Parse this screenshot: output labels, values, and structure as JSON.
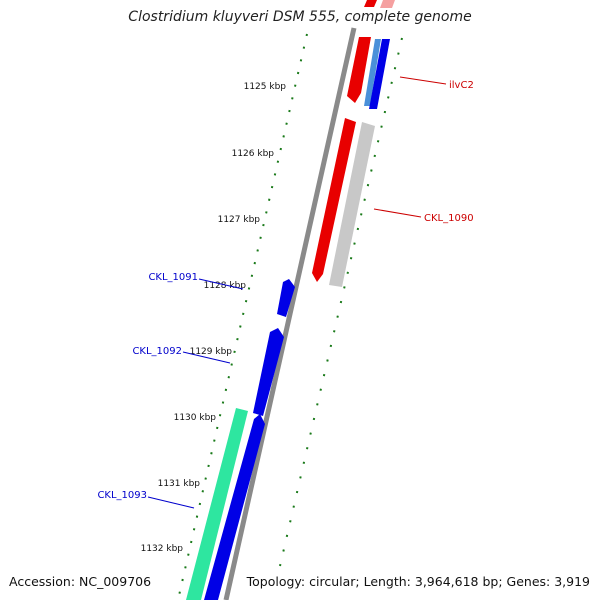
{
  "map": {
    "title": "Clostridium kluyveri DSM 555, complete genome",
    "accession_text": "Accession: NC_009706",
    "summary_text": "Topology: circular; Length: 3,964,618 bp; Genes: 3,919"
  },
  "ticks": [
    {
      "kbp": 1125,
      "label": "1125 kbp"
    },
    {
      "kbp": 1126,
      "label": "1126 kbp"
    },
    {
      "kbp": 1127,
      "label": "1127 kbp"
    },
    {
      "kbp": 1128,
      "label": "1128 kbp"
    },
    {
      "kbp": 1129,
      "label": "1129 kbp"
    },
    {
      "kbp": 1130,
      "label": "1130 kbp"
    },
    {
      "kbp": 1131,
      "label": "1131 kbp"
    },
    {
      "kbp": 1132,
      "label": "1132 kbp"
    }
  ],
  "gene_labels": [
    {
      "id": "ilvC2",
      "text": "ilvC2",
      "color": "#cc0000"
    },
    {
      "id": "CKL_1090",
      "text": "CKL_1090",
      "color": "#cc0000"
    },
    {
      "id": "CKL_1091",
      "text": "CKL_1091",
      "color": "#0000cc"
    },
    {
      "id": "CKL_1092",
      "text": "CKL_1092",
      "color": "#0000cc"
    },
    {
      "id": "CKL_1093",
      "text": "CKL_1093",
      "color": "#0000cc"
    }
  ],
  "colors": {
    "backbone": "#8a8a8a",
    "forward_cds": "#e80000",
    "reverse_cds": "#0000e6",
    "rna": "#4a90d9",
    "other": "#c8c8c8",
    "regulatory": "#2ee6a0",
    "tick": "#1a7a1a"
  }
}
